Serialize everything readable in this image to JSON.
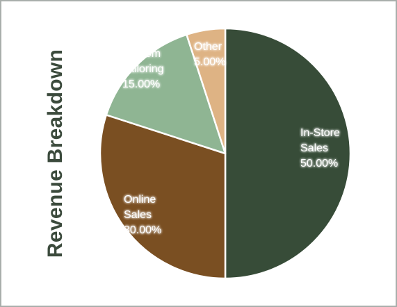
{
  "chart_data": {
    "type": "pie",
    "title": "Revenue Breakdown",
    "slices": [
      {
        "name": "In-Store Sales",
        "label_lines": [
          "In-Store",
          "Sales"
        ],
        "value": 50.0,
        "value_label": "50.00%",
        "color": "#374c38"
      },
      {
        "name": "Online Sales",
        "label_lines": [
          "Online",
          "Sales"
        ],
        "value": 30.0,
        "value_label": "30.00%",
        "color": "#7a4f22"
      },
      {
        "name": "Custom Tailoring",
        "label_lines": [
          "Custom",
          "Tailoring"
        ],
        "value": 15.0,
        "value_label": "15.00%",
        "color": "#8fb593"
      },
      {
        "name": "Other",
        "label_lines": [
          "Other"
        ],
        "value": 5.0,
        "value_label": "5.00%",
        "color": "#deb384"
      }
    ],
    "start_angle_deg": 0,
    "direction": "clockwise",
    "slice_border_color": "#ffffff"
  }
}
